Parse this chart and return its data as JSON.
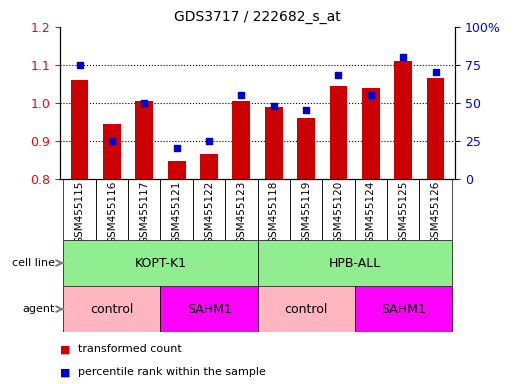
{
  "title": "GDS3717 / 222682_s_at",
  "samples": [
    "GSM455115",
    "GSM455116",
    "GSM455117",
    "GSM455121",
    "GSM455122",
    "GSM455123",
    "GSM455118",
    "GSM455119",
    "GSM455120",
    "GSM455124",
    "GSM455125",
    "GSM455126"
  ],
  "red_values": [
    1.06,
    0.945,
    1.005,
    0.845,
    0.865,
    1.005,
    0.99,
    0.96,
    1.045,
    1.04,
    1.11,
    1.065
  ],
  "blue_values": [
    75,
    25,
    50,
    20,
    25,
    55,
    48,
    45,
    68,
    55,
    80,
    70
  ],
  "ylim_left": [
    0.8,
    1.2
  ],
  "ylim_right": [
    0,
    100
  ],
  "yticks_left": [
    0.8,
    0.9,
    1.0,
    1.1,
    1.2
  ],
  "yticks_right": [
    0,
    25,
    50,
    75,
    100
  ],
  "ytick_labels_right": [
    "0",
    "25",
    "50",
    "75",
    "100%"
  ],
  "cell_line_labels": [
    "KOPT-K1",
    "HPB-ALL"
  ],
  "cell_line_ranges": [
    [
      0,
      6
    ],
    [
      6,
      12
    ]
  ],
  "cell_line_color": "#90EE90",
  "agent_labels": [
    "control",
    "SAHM1",
    "control",
    "SAHM1"
  ],
  "agent_ranges": [
    [
      0,
      3
    ],
    [
      3,
      6
    ],
    [
      6,
      9
    ],
    [
      9,
      12
    ]
  ],
  "agent_colors": [
    "#FFB6C1",
    "#FF00FF",
    "#FFB6C1",
    "#FF00FF"
  ],
  "bar_color": "#CC0000",
  "blue_marker_color": "#0000CC",
  "bar_width": 0.55,
  "tick_area_color": "#C8C8C8",
  "bg_color": "#FFFFFF",
  "grid_line_color": "#000000",
  "grid_dotted_at": [
    0.9,
    1.0,
    1.1
  ],
  "legend_items": [
    {
      "color": "#CC0000",
      "label": "transformed count"
    },
    {
      "color": "#0000CC",
      "label": "percentile rank within the sample"
    }
  ]
}
